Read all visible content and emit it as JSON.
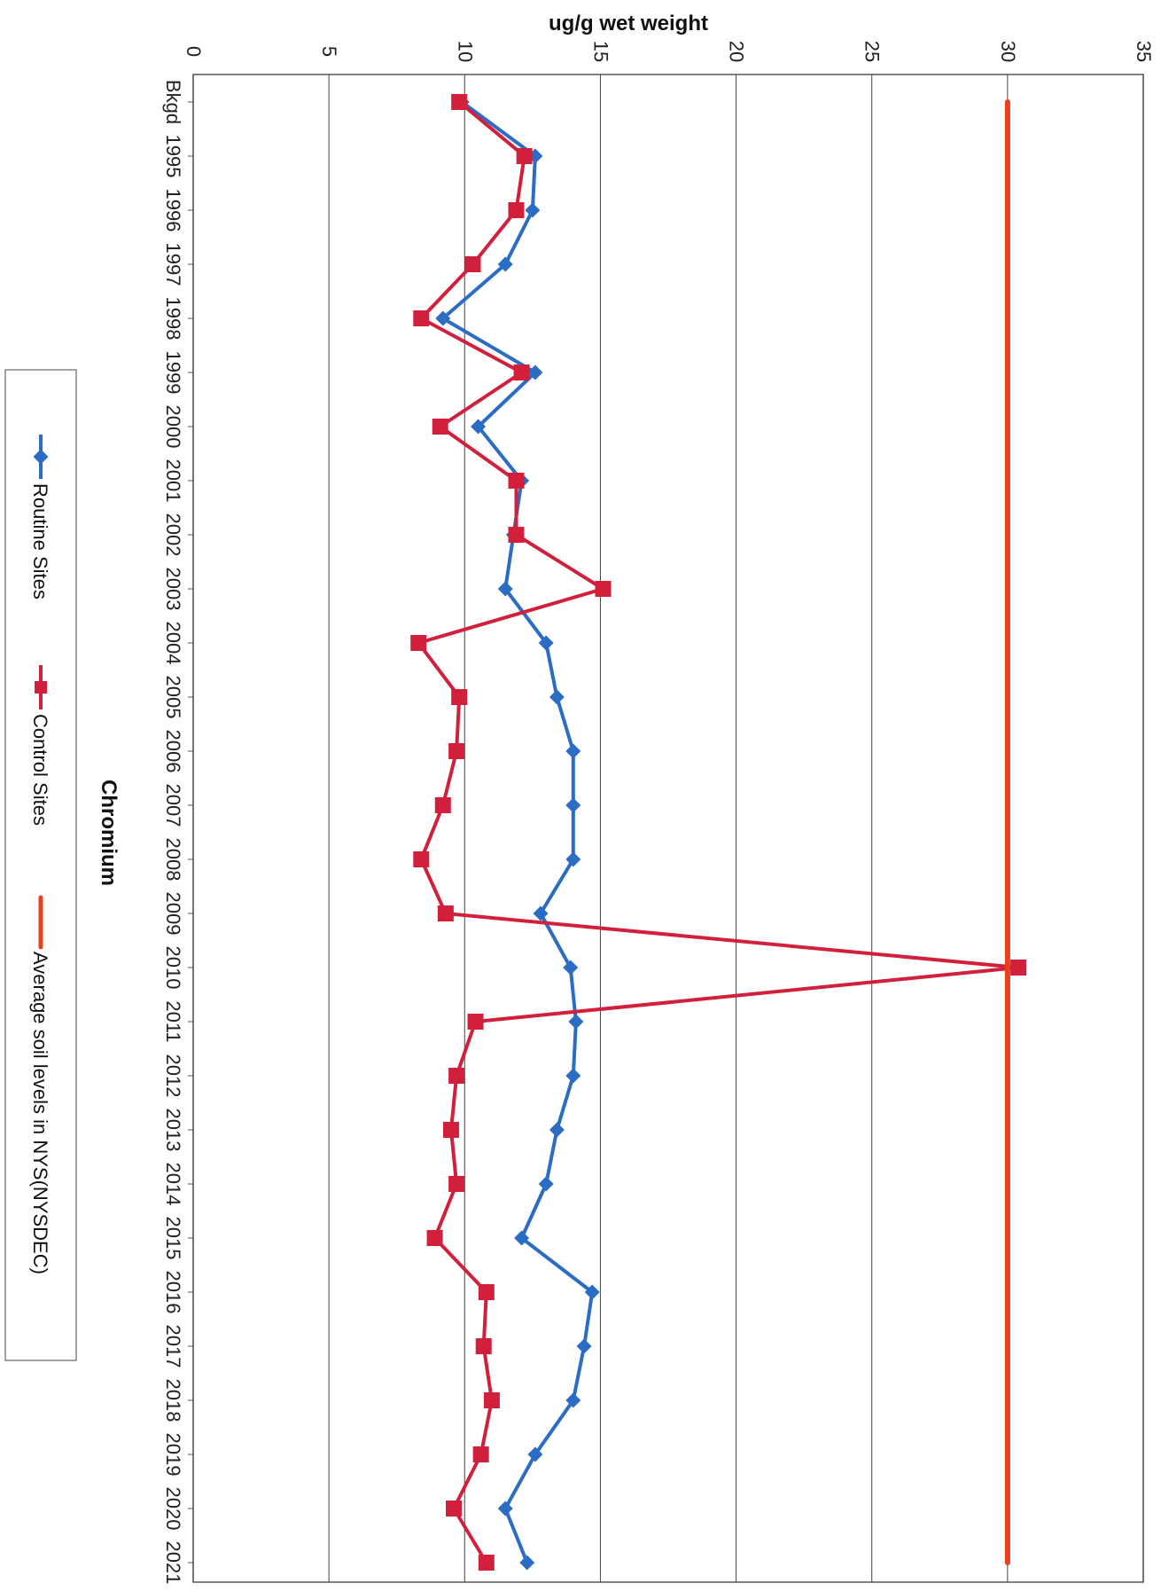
{
  "chart_data": {
    "type": "line",
    "orientation": "rotated-90-clockwise",
    "title": "Chromium",
    "ylabel": "ug/g wet weight",
    "xlabel": "",
    "ylim": [
      0,
      35
    ],
    "y_ticks": [
      0,
      5,
      10,
      15,
      20,
      25,
      30,
      35
    ],
    "grid": true,
    "legend_position": "bottom",
    "categories": [
      "Bkgd",
      "1995",
      "1996",
      "1997",
      "1998",
      "1999",
      "2000",
      "2001",
      "2002",
      "2003",
      "2004",
      "2005",
      "2006",
      "2007",
      "2008",
      "2009",
      "2010",
      "2011",
      "2012",
      "2013",
      "2014",
      "2015",
      "2016",
      "2017",
      "2018",
      "2019",
      "2020",
      "2021"
    ],
    "series": [
      {
        "name": "Routine Sites",
        "color": "#2b6cc4",
        "marker": "diamond",
        "values": [
          9.9,
          12.6,
          12.5,
          11.5,
          9.2,
          12.6,
          10.5,
          12.1,
          11.8,
          11.5,
          13.0,
          13.4,
          14.0,
          14.0,
          14.0,
          12.8,
          13.9,
          14.1,
          14.0,
          13.4,
          13.0,
          12.1,
          14.7,
          14.4,
          14.0,
          12.6,
          11.5,
          12.3
        ]
      },
      {
        "name": "Control Sites",
        "color": "#d21f3c",
        "marker": "square",
        "values": [
          9.8,
          12.2,
          11.9,
          10.3,
          8.4,
          12.1,
          9.1,
          11.9,
          11.9,
          15.1,
          8.3,
          9.8,
          9.7,
          9.2,
          8.4,
          9.3,
          30.4,
          10.4,
          9.7,
          9.5,
          9.7,
          8.9,
          10.8,
          10.7,
          11.0,
          10.6,
          9.6,
          10.8
        ]
      },
      {
        "name": "Average soil levels in NYS(NYSDEC)",
        "color": "#e8401c",
        "marker": "none",
        "values": [
          30,
          30,
          30,
          30,
          30,
          30,
          30,
          30,
          30,
          30,
          30,
          30,
          30,
          30,
          30,
          30,
          30,
          30,
          30,
          30,
          30,
          30,
          30,
          30,
          30,
          30,
          30,
          30
        ]
      }
    ]
  }
}
